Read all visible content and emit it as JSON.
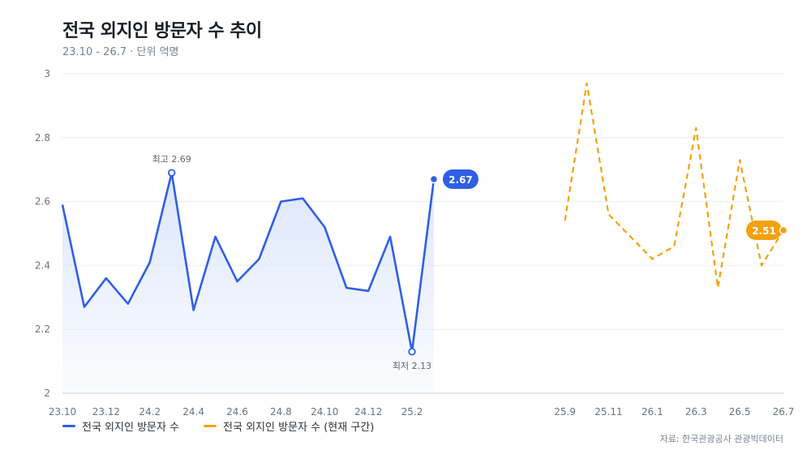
{
  "title": "전국 외지인 방문자 수 추이",
  "subtitle": "23.10 - 26.7 · 단위 억명",
  "source": "자료: 한국관광공사 관광빅데이터",
  "colors": {
    "actual": "#2f5fe3",
    "forecast": "#f2a20f",
    "area": "#dbe5fb"
  },
  "chart_data": {
    "type": "line",
    "ylim": [
      2,
      3
    ],
    "yticks": [
      "2",
      "2.2",
      "2.4",
      "2.6",
      "2.8",
      "3"
    ],
    "x_tick_labels": [
      "23.10",
      "23.12",
      "24.2",
      "24.4",
      "24.6",
      "24.8",
      "24.10",
      "24.12",
      "25.2",
      "25.9",
      "25.11",
      "26.1",
      "26.3",
      "26.5",
      "26.7"
    ],
    "series": [
      {
        "name": "전국 외지인 방문자 수",
        "style": "solid-area",
        "points": [
          [
            "23.10",
            2.59
          ],
          [
            "23.11",
            2.27
          ],
          [
            "23.12",
            2.36
          ],
          [
            "24.1",
            2.28
          ],
          [
            "24.2",
            2.41
          ],
          [
            "24.3",
            2.69
          ],
          [
            "24.4",
            2.26
          ],
          [
            "24.5",
            2.49
          ],
          [
            "24.6",
            2.35
          ],
          [
            "24.7",
            2.42
          ],
          [
            "24.8",
            2.6
          ],
          [
            "24.9",
            2.61
          ],
          [
            "24.10",
            2.52
          ],
          [
            "24.11",
            2.33
          ],
          [
            "24.12",
            2.32
          ],
          [
            "25.1",
            2.49
          ],
          [
            "25.2",
            2.13
          ],
          [
            "25.3",
            2.67
          ]
        ]
      },
      {
        "name": "전국 외지인 방문자 수 (현재 구간)",
        "style": "dashed",
        "points": [
          [
            "25.9",
            2.54
          ],
          [
            "25.10",
            2.97
          ],
          [
            "25.11",
            2.56
          ],
          [
            "25.12",
            2.49
          ],
          [
            "26.1",
            2.42
          ],
          [
            "26.2",
            2.46
          ],
          [
            "26.3",
            2.83
          ],
          [
            "26.4",
            2.33
          ],
          [
            "26.5",
            2.73
          ],
          [
            "26.6",
            2.4
          ],
          [
            "26.7",
            2.51
          ]
        ]
      }
    ],
    "annotations": {
      "max": {
        "label": "최고 2.69",
        "x": "24.3",
        "y": 2.69
      },
      "min": {
        "label": "최저 2.13",
        "x": "25.2",
        "y": 2.13
      },
      "last_actual": {
        "label": "2.67",
        "x": "25.3",
        "y": 2.67
      },
      "last_forecast": {
        "label": "2.51",
        "x": "26.7",
        "y": 2.51
      }
    },
    "grid": true,
    "legend_position": "bottom-left"
  }
}
